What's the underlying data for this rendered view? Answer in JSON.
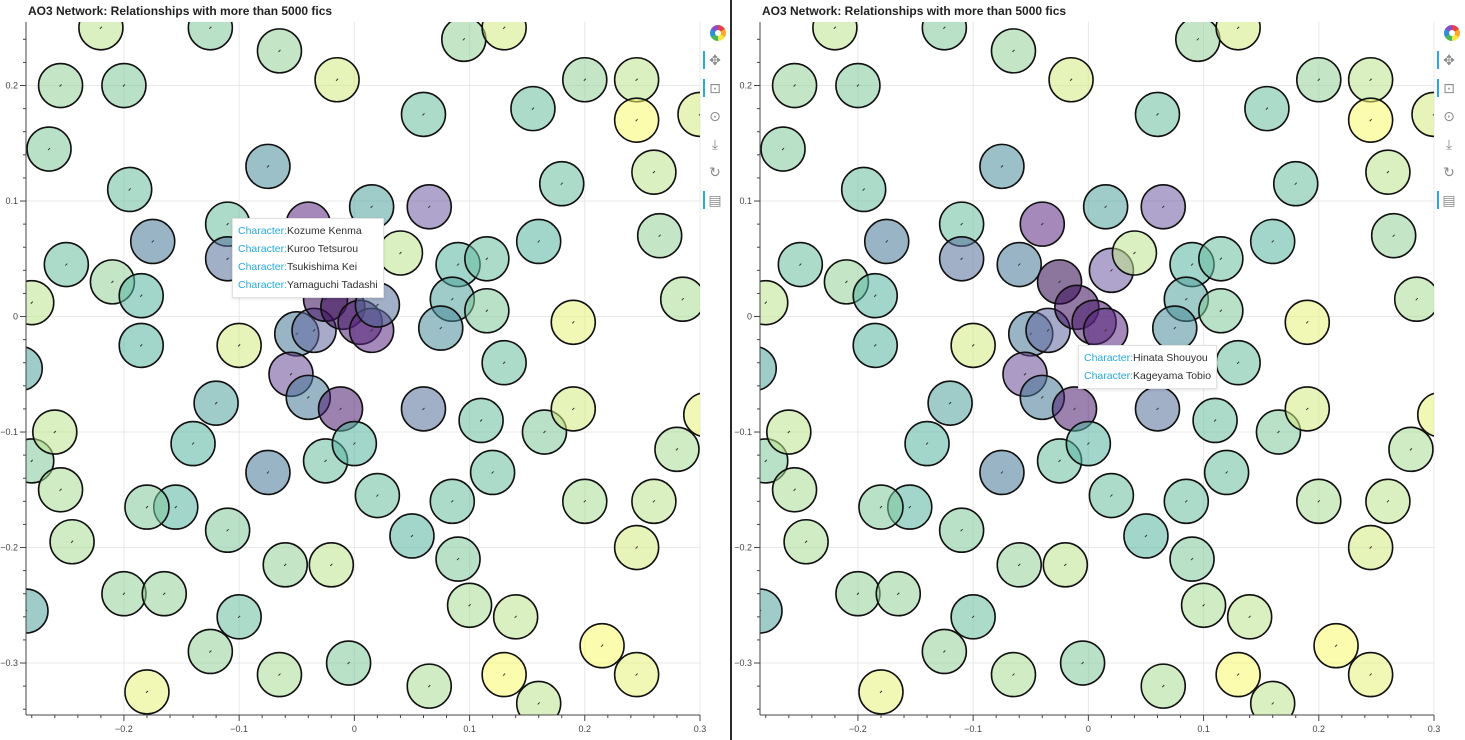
{
  "colors": {
    "low": "#fafa6e",
    "mid": "#4fa59a",
    "high": "#2a0045",
    "accent": "#26aae1",
    "grid": "#e8e8e8"
  },
  "panels": [
    {
      "title": "AO3 Network: Relationships with more than 5000 fics",
      "tooltip": {
        "key_label": "Character:",
        "rows": [
          {
            "value": "Kozume Kenma"
          },
          {
            "value": "Kuroo Tetsurou"
          },
          {
            "value": "Tsukishima Kei"
          },
          {
            "value": "Yamaguchi Tadashi"
          }
        ]
      },
      "toolbar": [
        "bokeh-logo-icon",
        "pan-icon",
        "box-zoom-icon",
        "wheel-zoom-icon",
        "save-icon",
        "reset-icon",
        "hover-icon"
      ]
    },
    {
      "title": "AO3 Network: Relationships with more than 5000 fics",
      "tooltip": {
        "key_label": "Character:",
        "rows": [
          {
            "value": "Hinata Shouyou"
          },
          {
            "value": "Kageyama Tobio"
          }
        ]
      },
      "toolbar": [
        "bokeh-logo-icon",
        "pan-icon",
        "box-zoom-icon",
        "wheel-zoom-icon",
        "save-icon",
        "reset-icon",
        "hover-icon"
      ]
    }
  ],
  "chart_data": [
    {
      "type": "scatter",
      "title": "AO3 Network: Relationships with more than 5000 fics",
      "xlabel": "",
      "ylabel": "",
      "xlim": [
        -0.285,
        0.3
      ],
      "ylim": [
        -0.345,
        0.255
      ],
      "xticks": [
        -0.2,
        -0.1,
        0,
        0.1,
        0.2,
        0.3
      ],
      "yticks": [
        -0.3,
        -0.2,
        -0.1,
        0,
        0.1,
        0.2
      ],
      "xtick_labels": [
        "−0.2",
        "−0.1",
        "0",
        "0.1",
        "0.2",
        "0.3"
      ],
      "ytick_labels": [
        "−0.3",
        "−0.2",
        "−0.1",
        "0",
        "0.1",
        "0.2"
      ],
      "grid": true,
      "color_by": "connection count (viridis-like, yellow = low, dark purple = high)",
      "points": [
        [
          -0.075,
          0.13,
          0.5
        ],
        [
          -0.11,
          0.08,
          0.35
        ],
        [
          -0.04,
          0.08,
          0.85
        ],
        [
          0.015,
          0.095,
          0.45
        ],
        [
          0.065,
          0.095,
          0.7
        ],
        [
          -0.11,
          0.05,
          0.6
        ],
        [
          -0.06,
          0.045,
          0.55
        ],
        [
          -0.175,
          0.065,
          0.55
        ],
        [
          -0.25,
          0.045,
          0.35
        ],
        [
          -0.21,
          0.03,
          0.25
        ],
        [
          -0.185,
          0.018,
          0.4
        ],
        [
          -0.28,
          0.012,
          0.15
        ],
        [
          -0.185,
          -0.025,
          0.4
        ],
        [
          -0.29,
          -0.045,
          0.45
        ],
        [
          -0.1,
          -0.025,
          0.1
        ],
        [
          -0.05,
          -0.015,
          0.55
        ],
        [
          -0.035,
          -0.012,
          0.65
        ],
        [
          -0.025,
          0.015,
          0.95
        ],
        [
          -0.01,
          0.008,
          0.95
        ],
        [
          0.005,
          -0.005,
          0.9
        ],
        [
          0.015,
          -0.012,
          0.85
        ],
        [
          0.02,
          0.01,
          0.6
        ],
        [
          0.04,
          0.055,
          0.15
        ],
        [
          0.09,
          0.045,
          0.4
        ],
        [
          0.115,
          0.05,
          0.35
        ],
        [
          0.085,
          0.015,
          0.45
        ],
        [
          0.075,
          -0.01,
          0.5
        ],
        [
          0.115,
          0.005,
          0.3
        ],
        [
          0.16,
          0.065,
          0.4
        ],
        [
          0.19,
          -0.005,
          0.05
        ],
        [
          0.13,
          -0.04,
          0.35
        ],
        [
          -0.055,
          -0.05,
          0.75
        ],
        [
          -0.04,
          -0.07,
          0.55
        ],
        [
          -0.012,
          -0.08,
          0.9
        ],
        [
          -0.12,
          -0.075,
          0.45
        ],
        [
          -0.14,
          -0.11,
          0.4
        ],
        [
          -0.075,
          -0.135,
          0.55
        ],
        [
          -0.025,
          -0.125,
          0.35
        ],
        [
          0.0,
          -0.11,
          0.4
        ],
        [
          0.06,
          -0.08,
          0.6
        ],
        [
          0.11,
          -0.09,
          0.35
        ],
        [
          0.165,
          -0.1,
          0.3
        ],
        [
          0.19,
          -0.08,
          0.1
        ],
        [
          0.02,
          -0.155,
          0.35
        ],
        [
          0.085,
          -0.16,
          0.35
        ],
        [
          0.12,
          -0.135,
          0.35
        ],
        [
          0.05,
          -0.19,
          0.4
        ],
        [
          0.09,
          -0.21,
          0.3
        ],
        [
          -0.155,
          -0.165,
          0.4
        ],
        [
          -0.18,
          -0.165,
          0.3
        ],
        [
          -0.11,
          -0.185,
          0.3
        ],
        [
          -0.06,
          -0.215,
          0.25
        ],
        [
          -0.02,
          -0.215,
          0.15
        ],
        [
          -0.1,
          -0.26,
          0.35
        ],
        [
          -0.2,
          -0.24,
          0.25
        ],
        [
          -0.165,
          -0.24,
          0.25
        ],
        [
          -0.125,
          -0.29,
          0.25
        ],
        [
          -0.065,
          -0.31,
          0.2
        ],
        [
          -0.005,
          -0.3,
          0.3
        ],
        [
          0.065,
          -0.32,
          0.2
        ],
        [
          0.1,
          -0.25,
          0.2
        ],
        [
          0.14,
          -0.26,
          0.15
        ],
        [
          0.13,
          -0.31,
          0.0
        ],
        [
          0.16,
          -0.335,
          0.15
        ],
        [
          0.215,
          -0.285,
          0.0
        ],
        [
          0.245,
          -0.31,
          0.05
        ],
        [
          0.245,
          -0.2,
          0.1
        ],
        [
          0.2,
          -0.16,
          0.2
        ],
        [
          0.26,
          -0.16,
          0.15
        ],
        [
          0.28,
          -0.115,
          0.2
        ],
        [
          0.305,
          -0.085,
          0.05
        ],
        [
          -0.28,
          -0.125,
          0.3
        ],
        [
          -0.26,
          -0.1,
          0.15
        ],
        [
          -0.255,
          -0.15,
          0.2
        ],
        [
          -0.245,
          -0.195,
          0.2
        ],
        [
          -0.285,
          -0.255,
          0.45
        ],
        [
          -0.18,
          -0.325,
          0.05
        ],
        [
          -0.265,
          0.145,
          0.3
        ],
        [
          -0.255,
          0.2,
          0.25
        ],
        [
          -0.2,
          0.2,
          0.3
        ],
        [
          -0.195,
          0.11,
          0.35
        ],
        [
          -0.22,
          0.25,
          0.15
        ],
        [
          -0.125,
          0.25,
          0.3
        ],
        [
          -0.065,
          0.23,
          0.25
        ],
        [
          -0.015,
          0.205,
          0.1
        ],
        [
          0.06,
          0.175,
          0.35
        ],
        [
          0.095,
          0.24,
          0.25
        ],
        [
          0.155,
          0.18,
          0.35
        ],
        [
          0.2,
          0.205,
          0.25
        ],
        [
          0.245,
          0.205,
          0.15
        ],
        [
          0.245,
          0.17,
          0.0
        ],
        [
          0.26,
          0.125,
          0.15
        ],
        [
          0.18,
          0.115,
          0.35
        ],
        [
          0.265,
          0.07,
          0.25
        ],
        [
          0.285,
          0.015,
          0.2
        ],
        [
          0.3,
          0.175,
          0.1
        ],
        [
          0.13,
          0.25,
          0.1
        ]
      ],
      "highlight_labels": [
        "Kozume Kenma",
        "Kuroo Tetsurou",
        "Tsukishima Kei",
        "Yamaguchi Tadashi"
      ]
    },
    {
      "type": "scatter",
      "title": "AO3 Network: Relationships with more than 5000 fics",
      "xlabel": "",
      "ylabel": "",
      "xlim": [
        -0.285,
        0.3
      ],
      "ylim": [
        -0.345,
        0.255
      ],
      "xticks": [
        -0.2,
        -0.1,
        0,
        0.1,
        0.2,
        0.3
      ],
      "yticks": [
        -0.3,
        -0.2,
        -0.1,
        0,
        0.1,
        0.2
      ],
      "xtick_labels": [
        "−0.2",
        "−0.1",
        "0",
        "0.1",
        "0.2",
        "0.3"
      ],
      "ytick_labels": [
        "−0.3",
        "−0.2",
        "−0.1",
        "0",
        "0.1",
        "0.2"
      ],
      "grid": true,
      "color_by": "connection count (viridis-like, yellow = low, dark purple = high)",
      "points": [
        [
          -0.075,
          0.13,
          0.5
        ],
        [
          -0.11,
          0.08,
          0.35
        ],
        [
          -0.04,
          0.08,
          0.85
        ],
        [
          0.015,
          0.095,
          0.45
        ],
        [
          0.065,
          0.095,
          0.7
        ],
        [
          -0.11,
          0.05,
          0.6
        ],
        [
          -0.06,
          0.045,
          0.55
        ],
        [
          -0.175,
          0.065,
          0.55
        ],
        [
          -0.25,
          0.045,
          0.35
        ],
        [
          -0.21,
          0.03,
          0.25
        ],
        [
          -0.185,
          0.018,
          0.4
        ],
        [
          -0.28,
          0.012,
          0.15
        ],
        [
          -0.185,
          -0.025,
          0.4
        ],
        [
          -0.29,
          -0.045,
          0.45
        ],
        [
          -0.1,
          -0.025,
          0.1
        ],
        [
          -0.05,
          -0.015,
          0.55
        ],
        [
          -0.035,
          -0.012,
          0.65
        ],
        [
          -0.025,
          0.03,
          0.98
        ],
        [
          -0.01,
          0.008,
          0.95
        ],
        [
          0.005,
          -0.005,
          0.9
        ],
        [
          0.015,
          -0.012,
          0.85
        ],
        [
          0.02,
          0.04,
          0.7
        ],
        [
          0.04,
          0.055,
          0.15
        ],
        [
          0.09,
          0.045,
          0.4
        ],
        [
          0.115,
          0.05,
          0.35
        ],
        [
          0.085,
          0.015,
          0.45
        ],
        [
          0.075,
          -0.01,
          0.5
        ],
        [
          0.115,
          0.005,
          0.3
        ],
        [
          0.16,
          0.065,
          0.4
        ],
        [
          0.19,
          -0.005,
          0.05
        ],
        [
          0.13,
          -0.04,
          0.35
        ],
        [
          -0.055,
          -0.05,
          0.75
        ],
        [
          -0.04,
          -0.07,
          0.55
        ],
        [
          -0.012,
          -0.08,
          0.9
        ],
        [
          -0.12,
          -0.075,
          0.45
        ],
        [
          -0.14,
          -0.11,
          0.4
        ],
        [
          -0.075,
          -0.135,
          0.55
        ],
        [
          -0.025,
          -0.125,
          0.35
        ],
        [
          0.0,
          -0.11,
          0.4
        ],
        [
          0.06,
          -0.08,
          0.6
        ],
        [
          0.11,
          -0.09,
          0.35
        ],
        [
          0.165,
          -0.1,
          0.3
        ],
        [
          0.19,
          -0.08,
          0.1
        ],
        [
          0.02,
          -0.155,
          0.35
        ],
        [
          0.085,
          -0.16,
          0.35
        ],
        [
          0.12,
          -0.135,
          0.35
        ],
        [
          0.05,
          -0.19,
          0.4
        ],
        [
          0.09,
          -0.21,
          0.3
        ],
        [
          -0.155,
          -0.165,
          0.4
        ],
        [
          -0.18,
          -0.165,
          0.3
        ],
        [
          -0.11,
          -0.185,
          0.3
        ],
        [
          -0.06,
          -0.215,
          0.25
        ],
        [
          -0.02,
          -0.215,
          0.15
        ],
        [
          -0.1,
          -0.26,
          0.35
        ],
        [
          -0.2,
          -0.24,
          0.25
        ],
        [
          -0.165,
          -0.24,
          0.25
        ],
        [
          -0.125,
          -0.29,
          0.25
        ],
        [
          -0.065,
          -0.31,
          0.2
        ],
        [
          -0.005,
          -0.3,
          0.3
        ],
        [
          0.065,
          -0.32,
          0.2
        ],
        [
          0.1,
          -0.25,
          0.2
        ],
        [
          0.14,
          -0.26,
          0.15
        ],
        [
          0.13,
          -0.31,
          0.0
        ],
        [
          0.16,
          -0.335,
          0.15
        ],
        [
          0.215,
          -0.285,
          0.0
        ],
        [
          0.245,
          -0.31,
          0.05
        ],
        [
          0.245,
          -0.2,
          0.1
        ],
        [
          0.2,
          -0.16,
          0.2
        ],
        [
          0.26,
          -0.16,
          0.15
        ],
        [
          0.28,
          -0.115,
          0.2
        ],
        [
          0.305,
          -0.085,
          0.05
        ],
        [
          -0.28,
          -0.125,
          0.3
        ],
        [
          -0.26,
          -0.1,
          0.15
        ],
        [
          -0.255,
          -0.15,
          0.2
        ],
        [
          -0.245,
          -0.195,
          0.2
        ],
        [
          -0.285,
          -0.255,
          0.45
        ],
        [
          -0.18,
          -0.325,
          0.05
        ],
        [
          -0.265,
          0.145,
          0.3
        ],
        [
          -0.255,
          0.2,
          0.25
        ],
        [
          -0.2,
          0.2,
          0.3
        ],
        [
          -0.195,
          0.11,
          0.35
        ],
        [
          -0.22,
          0.25,
          0.15
        ],
        [
          -0.125,
          0.25,
          0.3
        ],
        [
          -0.065,
          0.23,
          0.25
        ],
        [
          -0.015,
          0.205,
          0.1
        ],
        [
          0.06,
          0.175,
          0.35
        ],
        [
          0.095,
          0.24,
          0.25
        ],
        [
          0.155,
          0.18,
          0.35
        ],
        [
          0.2,
          0.205,
          0.25
        ],
        [
          0.245,
          0.205,
          0.15
        ],
        [
          0.245,
          0.17,
          0.0
        ],
        [
          0.26,
          0.125,
          0.15
        ],
        [
          0.18,
          0.115,
          0.35
        ],
        [
          0.265,
          0.07,
          0.25
        ],
        [
          0.285,
          0.015,
          0.2
        ],
        [
          0.3,
          0.175,
          0.1
        ],
        [
          0.13,
          0.25,
          0.1
        ]
      ],
      "highlight_labels": [
        "Hinata Shouyou",
        "Kageyama Tobio"
      ]
    }
  ]
}
